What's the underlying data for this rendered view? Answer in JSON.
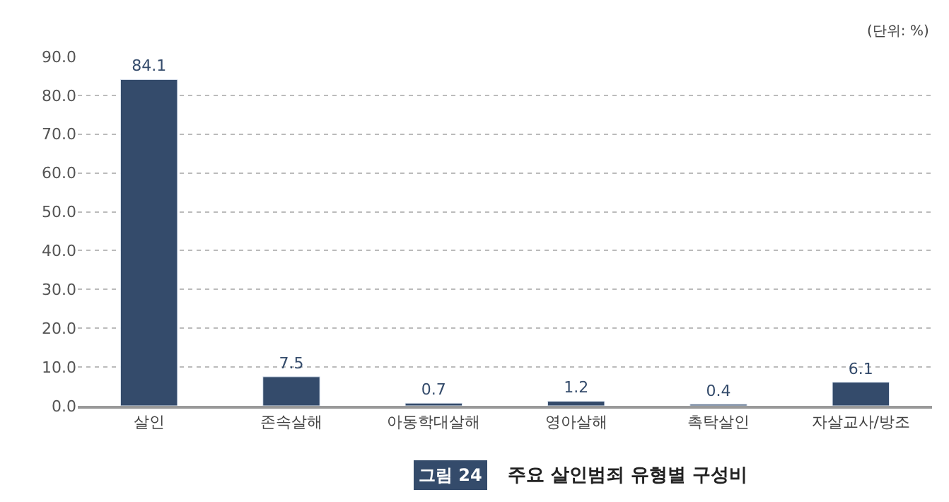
{
  "chart_data": {
    "type": "bar",
    "title": "주요 살인범죄 유형별 구성비",
    "categories": [
      "살인",
      "존속살해",
      "아동학대살해",
      "영아살해",
      "촉탁살인",
      "자살교사/방조"
    ],
    "values": [
      84.1,
      7.5,
      0.7,
      1.2,
      0.4,
      6.1
    ],
    "color": "#344b6b",
    "ylim": [
      0,
      90
    ],
    "yticks": [
      {
        "value": 0,
        "label": "0.0"
      },
      {
        "value": 10,
        "label": "10.0"
      },
      {
        "value": 20,
        "label": "20.0"
      },
      {
        "value": 30,
        "label": "30.0"
      },
      {
        "value": 40,
        "label": "40.0"
      },
      {
        "value": 50,
        "label": "50.0"
      },
      {
        "value": 60,
        "label": "60.0"
      },
      {
        "value": 70,
        "label": "70.0"
      },
      {
        "value": 80,
        "label": "80.0"
      },
      {
        "value": 90,
        "label": "90.0"
      }
    ],
    "grid": "y",
    "data_labels": true,
    "legend": false,
    "annotations": [
      "(단위: %)",
      "그림 24"
    ]
  }
}
